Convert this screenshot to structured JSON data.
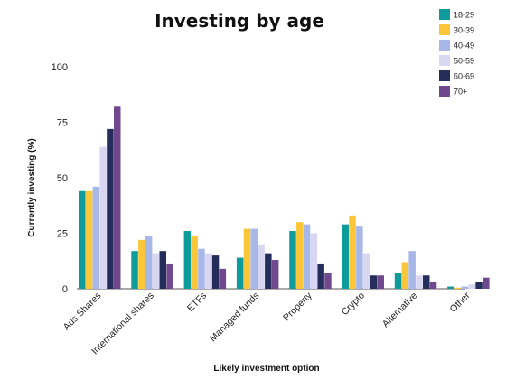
{
  "chart_data": {
    "type": "bar",
    "title": "Investing by age",
    "xlabel": "Likely investment option",
    "ylabel": "Currently investing  (%)",
    "ylim": [
      0,
      100
    ],
    "yticks": [
      0,
      25,
      50,
      75,
      100
    ],
    "grid": false,
    "legend_position": "top-right",
    "categories": [
      "Aus Shares",
      "International shares",
      "ETFs",
      "Managed funds",
      "Property",
      "Crypto",
      "Alternative",
      "Other"
    ],
    "series": [
      {
        "name": "18-29",
        "color": "#0e9b9b",
        "values": [
          44,
          17,
          26,
          14,
          26,
          29,
          7,
          1
        ]
      },
      {
        "name": "30-39",
        "color": "#fcc63a",
        "values": [
          44,
          22,
          24,
          27,
          30,
          33,
          12,
          0.5
        ]
      },
      {
        "name": "40-49",
        "color": "#a6b7e8",
        "values": [
          46,
          24,
          18,
          27,
          29,
          28,
          17,
          1
        ]
      },
      {
        "name": "50-59",
        "color": "#d9d6f2",
        "values": [
          64,
          16,
          16,
          20,
          25,
          16,
          6,
          2
        ]
      },
      {
        "name": "60-69",
        "color": "#252d5a",
        "values": [
          72,
          17,
          15,
          16,
          11,
          6,
          6,
          3
        ]
      },
      {
        "name": "70+",
        "color": "#70488e",
        "values": [
          82,
          11,
          9,
          13,
          7,
          6,
          3,
          5
        ]
      }
    ]
  }
}
